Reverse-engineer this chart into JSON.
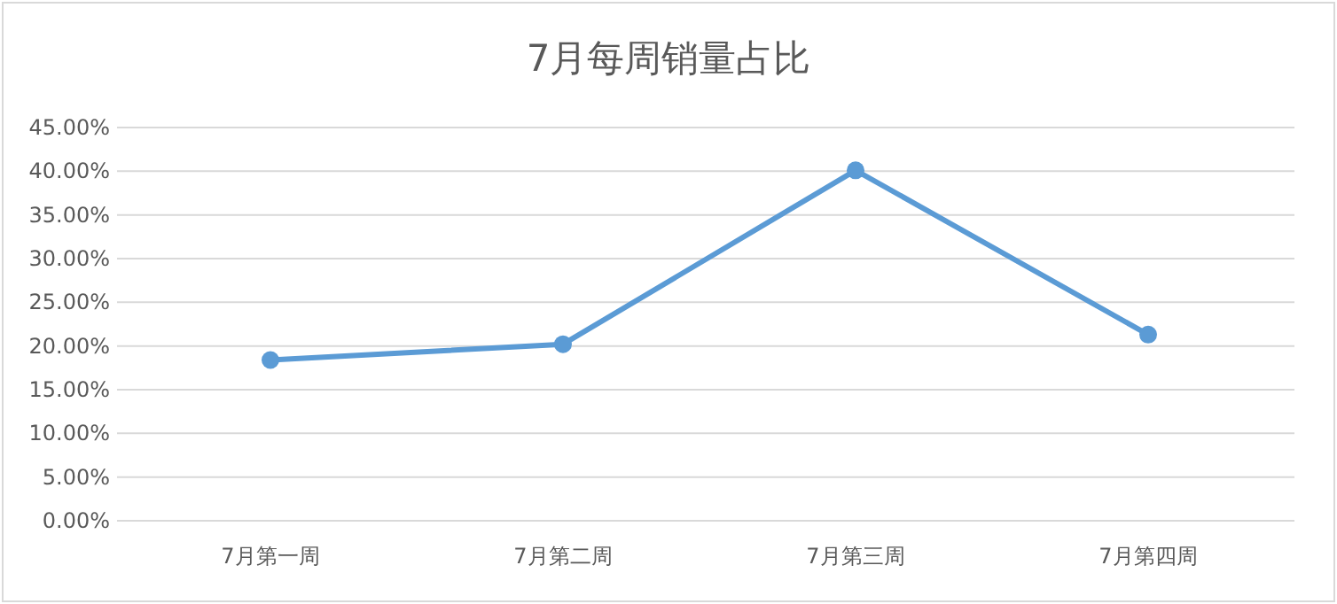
{
  "chart_data": {
    "type": "line",
    "title": "7月每周销量占比",
    "categories": [
      "7月第一周",
      "7月第二周",
      "7月第三周",
      "7月第四周"
    ],
    "values": [
      18.4,
      20.2,
      40.1,
      21.3
    ],
    "color": "#5b9bd5",
    "marker": "circle",
    "grid": "y",
    "ylim": [
      0,
      45
    ],
    "yticks": [
      {
        "value": 0,
        "label": "0.00%"
      },
      {
        "value": 5,
        "label": "5.00%"
      },
      {
        "value": 10,
        "label": "10.00%"
      },
      {
        "value": 15,
        "label": "15.00%"
      },
      {
        "value": 20,
        "label": "20.00%"
      },
      {
        "value": 25,
        "label": "25.00%"
      },
      {
        "value": 30,
        "label": "30.00%"
      },
      {
        "value": 35,
        "label": "35.00%"
      },
      {
        "value": 40,
        "label": "40.00%"
      },
      {
        "value": 45,
        "label": "45.00%"
      }
    ]
  }
}
